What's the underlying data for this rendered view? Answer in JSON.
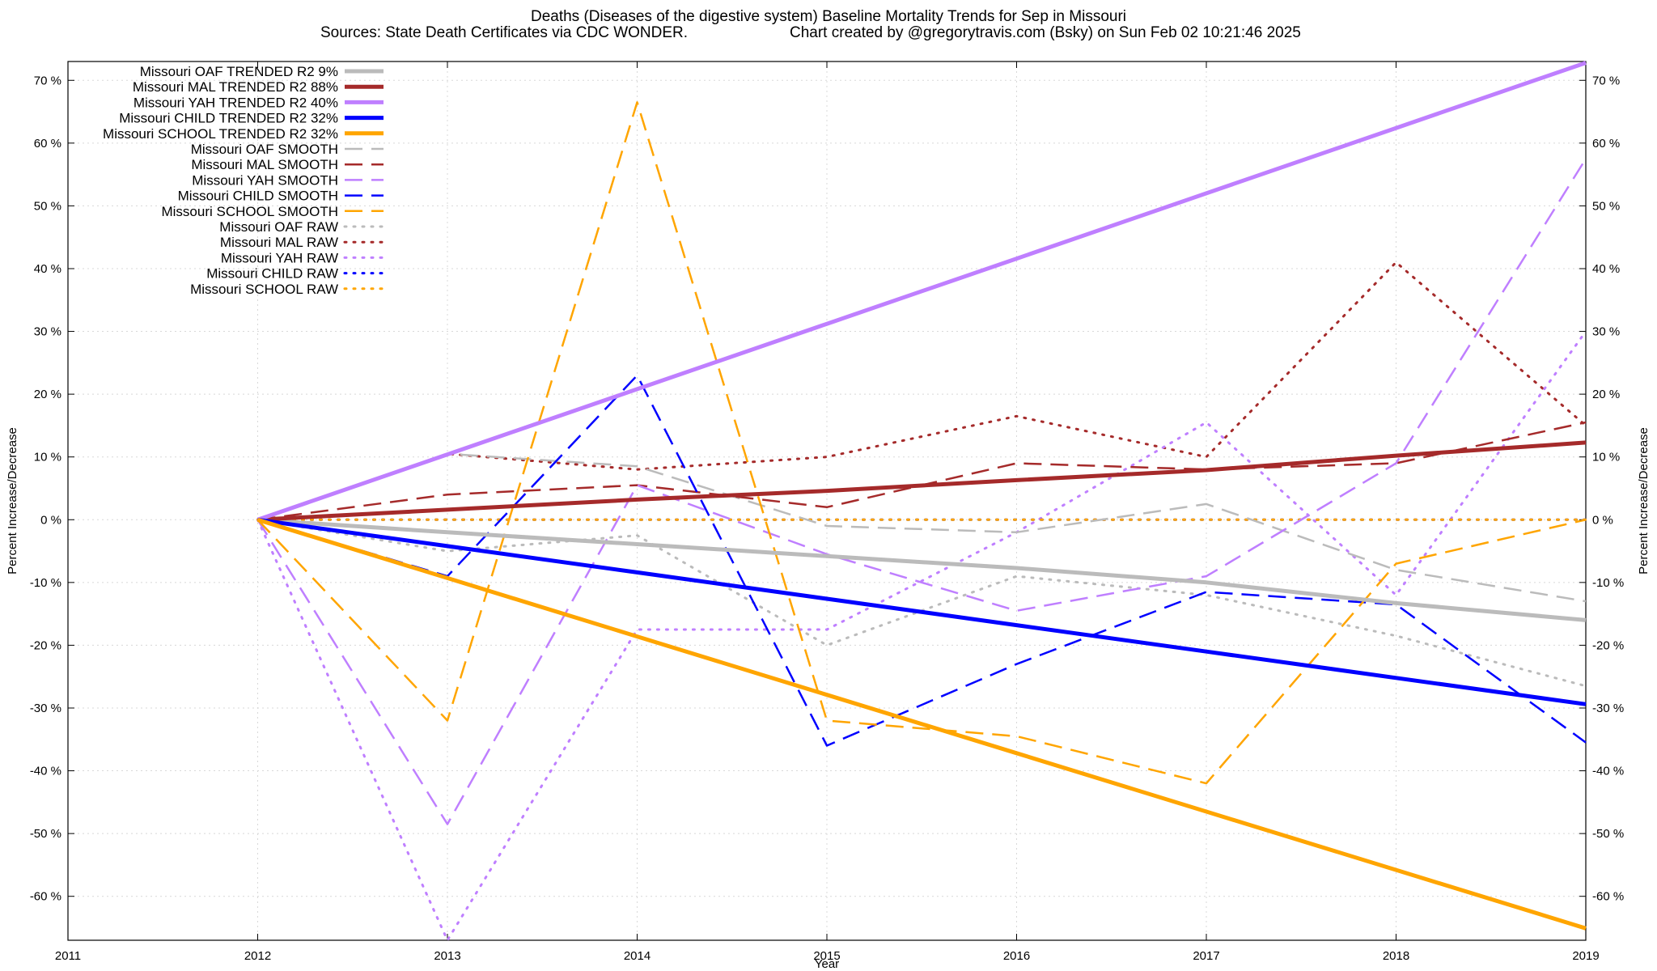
{
  "chart_data": {
    "type": "line",
    "title": "Deaths (Diseases of the digestive system)  Baseline Mortality Trends for Sep in Missouri",
    "subtitle_left": "Sources: State Death Certificates via CDC WONDER.",
    "subtitle_right": "Chart created by @gregorytravis.com (Bsky) on Sun Feb 02 10:21:46 2025",
    "xlabel": "Year",
    "ylabel_left": "Percent Increase/Decrease",
    "ylabel_right": "Percent Increase/Decrease",
    "xlim": [
      2011,
      2019
    ],
    "ylim": [
      -67,
      73
    ],
    "x_ticks": [
      "2011",
      "2012",
      "2013",
      "2014",
      "2015",
      "2016",
      "2017",
      "2018",
      "2019"
    ],
    "y_ticks": [
      "70 %",
      "60 %",
      "50 %",
      "40 %",
      "30 %",
      "20 %",
      "10 %",
      "0 %",
      "-10 %",
      "-20 %",
      "-30 %",
      "-40 %",
      "-50 %",
      "-60 %"
    ],
    "grid": true,
    "legend_position": "top-left",
    "x": [
      2012,
      2013,
      2014,
      2015,
      2016,
      2017,
      2018,
      2019
    ],
    "series": [
      {
        "name": "Missouri OAF TRENDED R2   9%",
        "style": "solid",
        "color": "#bbbbbb",
        "values": [
          0,
          -2,
          -3.9,
          -5.8,
          -7.7,
          -10,
          -13.3,
          -16
        ]
      },
      {
        "name": "Missouri MAL TRENDED R2  88%",
        "style": "solid",
        "color": "#a52a2a",
        "values": [
          0,
          1.6,
          3.2,
          4.6,
          6.3,
          7.9,
          10.2,
          12.3
        ]
      },
      {
        "name": "Missouri YAH TRENDED R2  40%",
        "style": "solid",
        "color": "#bf7fff",
        "values": [
          0,
          10.4,
          20.8,
          31.2,
          41.6,
          52,
          62.4,
          72.8
        ]
      },
      {
        "name": "Missouri CHILD TRENDED R2  32%",
        "style": "solid",
        "color": "#0000ff",
        "values": [
          0,
          -4.2,
          -8.4,
          -12.6,
          -16.8,
          -21,
          -25.2,
          -29.4
        ]
      },
      {
        "name": "Missouri SCHOOL TRENDED R2  32%",
        "style": "solid",
        "color": "#ffa500",
        "values": [
          0,
          -9.3,
          -18.6,
          -27.9,
          -37.2,
          -46.5,
          -55.8,
          -65.1
        ]
      },
      {
        "name": "Missouri OAF SMOOTH",
        "style": "dashed",
        "color": "#bbbbbb",
        "values": [
          0,
          10.5,
          8.5,
          -1,
          -2,
          2.5,
          -8,
          -13
        ]
      },
      {
        "name": "Missouri MAL SMOOTH",
        "style": "dashed",
        "color": "#a52a2a",
        "values": [
          0,
          4,
          5.5,
          2,
          9,
          8,
          9,
          15.5
        ]
      },
      {
        "name": "Missouri YAH SMOOTH",
        "style": "dashed",
        "color": "#bf7fff",
        "values": [
          0,
          -48.5,
          5.5,
          -5.5,
          -14.5,
          -9,
          9,
          57.5
        ]
      },
      {
        "name": "Missouri CHILD SMOOTH",
        "style": "dashed",
        "color": "#0000ff",
        "values": [
          0,
          -9,
          23,
          -36,
          -23,
          -11.5,
          -13.5,
          -35.5
        ]
      },
      {
        "name": "Missouri SCHOOL SMOOTH",
        "style": "dashed",
        "color": "#ffa500",
        "values": [
          0,
          -32,
          66.5,
          -32,
          -34.5,
          -42,
          -7,
          0
        ]
      },
      {
        "name": "Missouri OAF RAW",
        "style": "dotted",
        "color": "#bbbbbb",
        "values": [
          0,
          -5,
          -2.5,
          -20,
          -9,
          -12,
          -18.5,
          -26.5
        ]
      },
      {
        "name": "Missouri MAL RAW",
        "style": "dotted",
        "color": "#a52a2a",
        "values": [
          0,
          10.5,
          8,
          10,
          16.5,
          10,
          41,
          15
        ]
      },
      {
        "name": "Missouri YAH RAW",
        "style": "dotted",
        "color": "#bf7fff",
        "values": [
          0,
          -67,
          -17.5,
          -17.5,
          -2,
          15.5,
          -12,
          30
        ]
      },
      {
        "name": "Missouri CHILD RAW",
        "style": "dotted",
        "color": "#0000ff",
        "values": [
          0,
          0,
          0,
          0,
          0,
          0,
          0,
          0
        ]
      },
      {
        "name": "Missouri SCHOOL RAW",
        "style": "dotted",
        "color": "#ffa500",
        "values": [
          0,
          0,
          0,
          0,
          0,
          0,
          0,
          0
        ]
      }
    ]
  }
}
